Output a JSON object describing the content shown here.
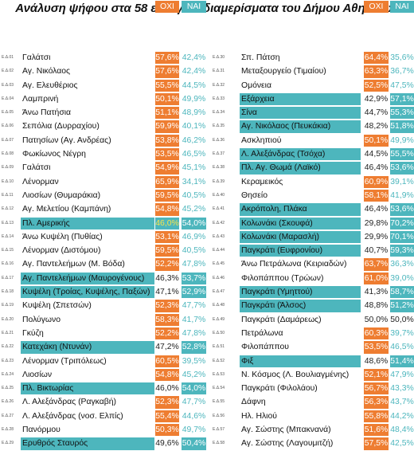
{
  "title": "Ανάλυση ψήφου στα 58 εκλογικά διαμερίσματα του Δήμου Αθηναίων",
  "headers": {
    "oxi": "ΟΧΙ",
    "nai": "ΝΑΙ"
  },
  "colors": {
    "oxi": "#EE7D31",
    "nai": "#4DB6BD"
  },
  "left": [
    {
      "code": "Ε.Δ.01",
      "name": "Γαλάτσι",
      "oxi": "57,6%",
      "nai": "42,4%",
      "winner": "oxi"
    },
    {
      "code": "Ε.Δ.02",
      "name": "Αγ. Νικόλαος",
      "oxi": "57,6%",
      "nai": "42,4%",
      "winner": "oxi"
    },
    {
      "code": "Ε.Δ.03",
      "name": "Αγ. Ελευθέριος",
      "oxi": "55,5%",
      "nai": "44,5%",
      "winner": "oxi"
    },
    {
      "code": "Ε.Δ.04",
      "name": "Λαμπρινή",
      "oxi": "50,1%",
      "nai": "49,9%",
      "winner": "oxi"
    },
    {
      "code": "Ε.Δ.05",
      "name": "Άνω Πατήσια",
      "oxi": "51,1%",
      "nai": "48,9%",
      "winner": "oxi"
    },
    {
      "code": "Ε.Δ.06",
      "name": "Σεπόλια (Δυρραχίου)",
      "oxi": "59,9%",
      "nai": "40,1%",
      "winner": "oxi"
    },
    {
      "code": "Ε.Δ.07",
      "name": "Πατησίων (Αγ. Ανδρέας)",
      "oxi": "53,8%",
      "nai": "46,2%",
      "winner": "oxi"
    },
    {
      "code": "Ε.Δ.08",
      "name": "Φωκίωνος Νέγρη",
      "oxi": "53,5%",
      "nai": "46,5%",
      "winner": "oxi"
    },
    {
      "code": "Ε.Δ.09",
      "name": "Γαλάτσι",
      "oxi": "54,9%",
      "nai": "45,1%",
      "winner": "oxi"
    },
    {
      "code": "Ε.Δ.10",
      "name": "Λένορμαν",
      "oxi": "65,9%",
      "nai": "34,1%",
      "winner": "oxi"
    },
    {
      "code": "Ε.Δ.11",
      "name": "Λιοσίων (Θυμαράκια)",
      "oxi": "59,5%",
      "nai": "40,5%",
      "winner": "oxi"
    },
    {
      "code": "Ε.Δ.12",
      "name": "Αγ. Μελετίου (Καμπάνη)",
      "oxi": "54,8%",
      "nai": "45,2%",
      "winner": "oxi"
    },
    {
      "code": "Ε.Δ.13",
      "name": "Πλ. Αμερικής",
      "oxi": "46,0%",
      "nai": "54,0%",
      "winner": "nai",
      "yellow": true
    },
    {
      "code": "Ε.Δ.14",
      "name": "Άνω Κυψέλη (Πυθίας)",
      "oxi": "53,1%",
      "nai": "46,9%",
      "winner": "oxi"
    },
    {
      "code": "Ε.Δ.15",
      "name": "Λένορμαν (Διστόμου)",
      "oxi": "59,5%",
      "nai": "40,5%",
      "winner": "oxi"
    },
    {
      "code": "Ε.Δ.16",
      "name": "Αγ. Παντελεήμων (Μ. Βόδα)",
      "oxi": "52,2%",
      "nai": "47,8%",
      "winner": "oxi"
    },
    {
      "code": "Ε.Δ.17",
      "name": "Αγ. Παντελεήμων (Μαυρογένους)",
      "oxi": "46,3%",
      "nai": "53,7%",
      "winner": "nai"
    },
    {
      "code": "Ε.Δ.18",
      "name": "Κυψέλη (Τροίας, Κυψέλης, Παξών)",
      "oxi": "47,1%",
      "nai": "52,9%",
      "winner": "nai"
    },
    {
      "code": "Ε.Δ.19",
      "name": "Κυψέλη (Σπετσών)",
      "oxi": "52,3%",
      "nai": "47,7%",
      "winner": "oxi"
    },
    {
      "code": "Ε.Δ.20",
      "name": "Πολύγωνο",
      "oxi": "58,3%",
      "nai": "41,7%",
      "winner": "oxi"
    },
    {
      "code": "Ε.Δ.21",
      "name": "Γκύζη",
      "oxi": "52,2%",
      "nai": "47,8%",
      "winner": "oxi"
    },
    {
      "code": "Ε.Δ.22",
      "name": "Κατεχάκη (Ντυνάν)",
      "oxi": "47,2%",
      "nai": "52,8%",
      "winner": "nai"
    },
    {
      "code": "Ε.Δ.23",
      "name": "Λένορμαν (Τριπόλεως)",
      "oxi": "60,5%",
      "nai": "39,5%",
      "winner": "oxi"
    },
    {
      "code": "Ε.Δ.24",
      "name": "Λιοσίων",
      "oxi": "54,8%",
      "nai": "45,2%",
      "winner": "oxi"
    },
    {
      "code": "Ε.Δ.25",
      "name": "Πλ. Βικτωρίας",
      "oxi": "46,0%",
      "nai": "54,0%",
      "winner": "nai"
    },
    {
      "code": "Ε.Δ.26",
      "name": "Λ. Αλεξάνδρας (Ραγκαβή)",
      "oxi": "52,3%",
      "nai": "47,7%",
      "winner": "oxi"
    },
    {
      "code": "Ε.Δ.27",
      "name": "Λ. Αλεξάνδρας (νοσ. Ελπίς)",
      "oxi": "55,4%",
      "nai": "44,6%",
      "winner": "oxi"
    },
    {
      "code": "Ε.Δ.28",
      "name": "Πανόρμου",
      "oxi": "50,3%",
      "nai": "49,7%",
      "winner": "oxi"
    },
    {
      "code": "Ε.Δ.29",
      "name": "Ερυθρός Σταυρός",
      "oxi": "49,6%",
      "nai": "50,4%",
      "winner": "nai"
    }
  ],
  "right": [
    {
      "code": "Ε.Δ.30",
      "name": "Σπ. Πάτση",
      "oxi": "64,4%",
      "nai": "35,6%",
      "winner": "oxi"
    },
    {
      "code": "Ε.Δ.31",
      "name": "Μεταξουργείο (Τιμαίου)",
      "oxi": "63,3%",
      "nai": "36,7%",
      "winner": "oxi"
    },
    {
      "code": "Ε.Δ.32",
      "name": "Ομόνεια",
      "oxi": "52,5%",
      "nai": "47,5%",
      "winner": "oxi"
    },
    {
      "code": "Ε.Δ.33",
      "name": "Εξάρχεια",
      "oxi": "42,9%",
      "nai": "57,1%",
      "winner": "nai"
    },
    {
      "code": "Ε.Δ.34",
      "name": "Σίνα",
      "oxi": "44,7%",
      "nai": "55,3%",
      "winner": "nai"
    },
    {
      "code": "Ε.Δ.35",
      "name": "Αγ. Νικόλαος (Πευκάκια)",
      "oxi": "48,2%",
      "nai": "51,8%",
      "winner": "nai"
    },
    {
      "code": "Ε.Δ.36",
      "name": "Ασκληπιού",
      "oxi": "50,1%",
      "nai": "49,9%",
      "winner": "oxi"
    },
    {
      "code": "Ε.Δ.37",
      "name": "Λ. Αλεξάνδρας (Τσόχα)",
      "oxi": "44,5%",
      "nai": "55,5%",
      "winner": "nai"
    },
    {
      "code": "Ε.Δ.38",
      "name": "Πλ. Αγ. Θωμά (Λαϊκό)",
      "oxi": "46,4%",
      "nai": "53,6%",
      "winner": "nai"
    },
    {
      "code": "Ε.Δ.39",
      "name": "Κεραμεικός",
      "oxi": "60,9%",
      "nai": "39,1%",
      "winner": "oxi"
    },
    {
      "code": "Ε.Δ.40",
      "name": "Θησείο",
      "oxi": "58,1%",
      "nai": "41,9%",
      "winner": "oxi"
    },
    {
      "code": "Ε.Δ.41",
      "name": "Ακρόπολη, Πλάκα",
      "oxi": "46,4%",
      "nai": "53,6%",
      "winner": "nai"
    },
    {
      "code": "Ε.Δ.42",
      "name": "Κολωνάκι (Σκουφά)",
      "oxi": "29,8%",
      "nai": "70,2%",
      "winner": "nai"
    },
    {
      "code": "Ε.Δ.43",
      "name": "Κολωνάκι (Μαρασλή)",
      "oxi": "29,9%",
      "nai": "70,1%",
      "winner": "nai"
    },
    {
      "code": "Ε.Δ.44",
      "name": "Παγκράτι (Ευφρονίου)",
      "oxi": "40,7%",
      "nai": "59,3%",
      "winner": "nai"
    },
    {
      "code": "Ε.Δ.45",
      "name": "Άνω Πετράλωνα (Κειριαδών)",
      "oxi": "63,7%",
      "nai": "36,3%",
      "winner": "oxi"
    },
    {
      "code": "Ε.Δ.46",
      "name": "Φιλοπάππου (Τρώων)",
      "oxi": "61,0%",
      "nai": "39,0%",
      "winner": "oxi"
    },
    {
      "code": "Ε.Δ.47",
      "name": "Παγκράτι (Υμηττού)",
      "oxi": "41,3%",
      "nai": "58,7%",
      "winner": "nai"
    },
    {
      "code": "Ε.Δ.48",
      "name": "Παγκράτι (Άλσος)",
      "oxi": "48,8%",
      "nai": "51,2%",
      "winner": "nai"
    },
    {
      "code": "Ε.Δ.49",
      "name": "Παγκράτι (Δαμάρεως)",
      "oxi": "50,0%",
      "nai": "50,0%",
      "winner": "tie"
    },
    {
      "code": "Ε.Δ.50",
      "name": "Πετράλωνα",
      "oxi": "60,3%",
      "nai": "39,7%",
      "winner": "oxi"
    },
    {
      "code": "Ε.Δ.51",
      "name": "Φιλοπάππου",
      "oxi": "53,5%",
      "nai": "46,5%",
      "winner": "oxi"
    },
    {
      "code": "Ε.Δ.52",
      "name": "Φιξ",
      "oxi": "48,6%",
      "nai": "51,4%",
      "winner": "nai"
    },
    {
      "code": "Ε.Δ.53",
      "name": "Ν. Κόσμος (Λ. Βουλιαγμένης)",
      "oxi": "52,1%",
      "nai": "47,9%",
      "winner": "oxi"
    },
    {
      "code": "Ε.Δ.54",
      "name": "Παγκράτι (Φιλολάου)",
      "oxi": "56,7%",
      "nai": "43,3%",
      "winner": "oxi"
    },
    {
      "code": "Ε.Δ.55",
      "name": "Δάφνη",
      "oxi": "56,3%",
      "nai": "43,7%",
      "winner": "oxi"
    },
    {
      "code": "Ε.Δ.56",
      "name": "Ηλ. Ηλιού",
      "oxi": "55,8%",
      "nai": "44,2%",
      "winner": "oxi"
    },
    {
      "code": "Ε.Δ.57",
      "name": "Αγ. Σώστης (Μπακνανά)",
      "oxi": "51,6%",
      "nai": "48,4%",
      "winner": "oxi"
    },
    {
      "code": "Ε.Δ.58",
      "name": "Αγ. Σώστης (Λαγουμιτζή)",
      "oxi": "57,5%",
      "nai": "42,5%",
      "winner": "oxi"
    }
  ]
}
